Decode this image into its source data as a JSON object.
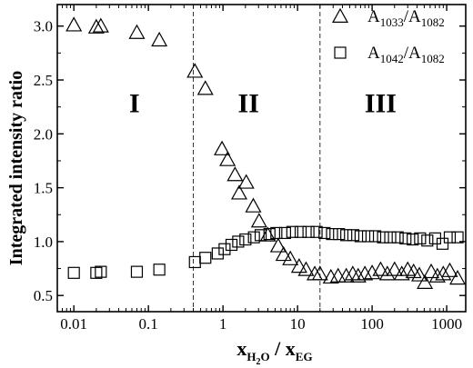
{
  "chart_data": {
    "type": "scatter",
    "title": "",
    "xlabel": {
      "main": "x",
      "sub1": "H",
      "sub2": "2",
      "sub3": "O",
      "mid": " / x",
      "sub4": "EG"
    },
    "ylabel": "Integrated intensity ratio",
    "xscale": "log",
    "xlim": [
      0.006,
      1800
    ],
    "ylim": [
      0.35,
      3.2
    ],
    "xticks": [
      {
        "value": 0.01,
        "label": "0.01"
      },
      {
        "value": 0.1,
        "label": "0.1"
      },
      {
        "value": 1,
        "label": "1"
      },
      {
        "value": 10,
        "label": "10"
      },
      {
        "value": 100,
        "label": "100"
      },
      {
        "value": 1000,
        "label": "1000"
      }
    ],
    "yticks": [
      {
        "value": 0.5,
        "label": "0.5"
      },
      {
        "value": 1.0,
        "label": "1.0"
      },
      {
        "value": 1.5,
        "label": "1.5"
      },
      {
        "value": 2.0,
        "label": "2.0"
      },
      {
        "value": 2.5,
        "label": "2.5"
      },
      {
        "value": 3.0,
        "label": "3.0"
      }
    ],
    "region_boundaries": [
      0.4,
      20
    ],
    "regions": [
      {
        "label": "I",
        "x": 0.065,
        "y": 2.2
      },
      {
        "label": "II",
        "x": 2.2,
        "y": 2.2
      },
      {
        "label": "III",
        "x": 130,
        "y": 2.2
      }
    ],
    "legend_position": "top-right",
    "series": [
      {
        "marker": "triangle",
        "legend": {
          "main": "A",
          "sub1": "1033",
          "mid": "/A",
          "sub2": "1082"
        },
        "points": [
          [
            0.01,
            3.01
          ],
          [
            0.02,
            2.99
          ],
          [
            0.023,
            3.0
          ],
          [
            0.07,
            2.94
          ],
          [
            0.14,
            2.87
          ],
          [
            0.42,
            2.58
          ],
          [
            0.58,
            2.42
          ],
          [
            0.97,
            1.86
          ],
          [
            1.15,
            1.76
          ],
          [
            1.45,
            1.62
          ],
          [
            1.65,
            1.45
          ],
          [
            2.05,
            1.55
          ],
          [
            2.55,
            1.33
          ],
          [
            3.05,
            1.19
          ],
          [
            4.0,
            1.06
          ],
          [
            5.5,
            0.96
          ],
          [
            6.5,
            0.88
          ],
          [
            8.0,
            0.84
          ],
          [
            10.5,
            0.77
          ],
          [
            13,
            0.74
          ],
          [
            17,
            0.7
          ],
          [
            20,
            0.7
          ],
          [
            28,
            0.67
          ],
          [
            35,
            0.68
          ],
          [
            45,
            0.68
          ],
          [
            55,
            0.7
          ],
          [
            65,
            0.68
          ],
          [
            80,
            0.7
          ],
          [
            100,
            0.71
          ],
          [
            130,
            0.74
          ],
          [
            160,
            0.7
          ],
          [
            200,
            0.74
          ],
          [
            250,
            0.7
          ],
          [
            300,
            0.74
          ],
          [
            360,
            0.72
          ],
          [
            430,
            0.69
          ],
          [
            510,
            0.62
          ],
          [
            620,
            0.72
          ],
          [
            750,
            0.68
          ],
          [
            900,
            0.7
          ],
          [
            1100,
            0.73
          ],
          [
            1400,
            0.66
          ]
        ]
      },
      {
        "marker": "square",
        "legend": {
          "main": "A",
          "sub1": "1042",
          "mid": "/A",
          "sub2": "1082"
        },
        "points": [
          [
            0.01,
            0.71
          ],
          [
            0.02,
            0.71
          ],
          [
            0.023,
            0.72
          ],
          [
            0.07,
            0.72
          ],
          [
            0.14,
            0.74
          ],
          [
            0.42,
            0.81
          ],
          [
            0.58,
            0.85
          ],
          [
            0.85,
            0.89
          ],
          [
            1.05,
            0.93
          ],
          [
            1.3,
            0.97
          ],
          [
            1.6,
            1.0
          ],
          [
            2.0,
            1.02
          ],
          [
            2.6,
            1.04
          ],
          [
            3.2,
            1.06
          ],
          [
            4.2,
            1.07
          ],
          [
            5.2,
            1.08
          ],
          [
            6.8,
            1.08
          ],
          [
            8.5,
            1.09
          ],
          [
            11,
            1.09
          ],
          [
            14,
            1.09
          ],
          [
            18,
            1.09
          ],
          [
            23,
            1.08
          ],
          [
            29,
            1.07
          ],
          [
            36,
            1.07
          ],
          [
            45,
            1.06
          ],
          [
            56,
            1.06
          ],
          [
            70,
            1.05
          ],
          [
            88,
            1.05
          ],
          [
            110,
            1.05
          ],
          [
            140,
            1.04
          ],
          [
            175,
            1.04
          ],
          [
            220,
            1.04
          ],
          [
            280,
            1.03
          ],
          [
            350,
            1.02
          ],
          [
            440,
            1.03
          ],
          [
            550,
            1.01
          ],
          [
            700,
            1.03
          ],
          [
            880,
            0.98
          ],
          [
            1100,
            1.04
          ],
          [
            1400,
            1.04
          ]
        ]
      }
    ]
  }
}
